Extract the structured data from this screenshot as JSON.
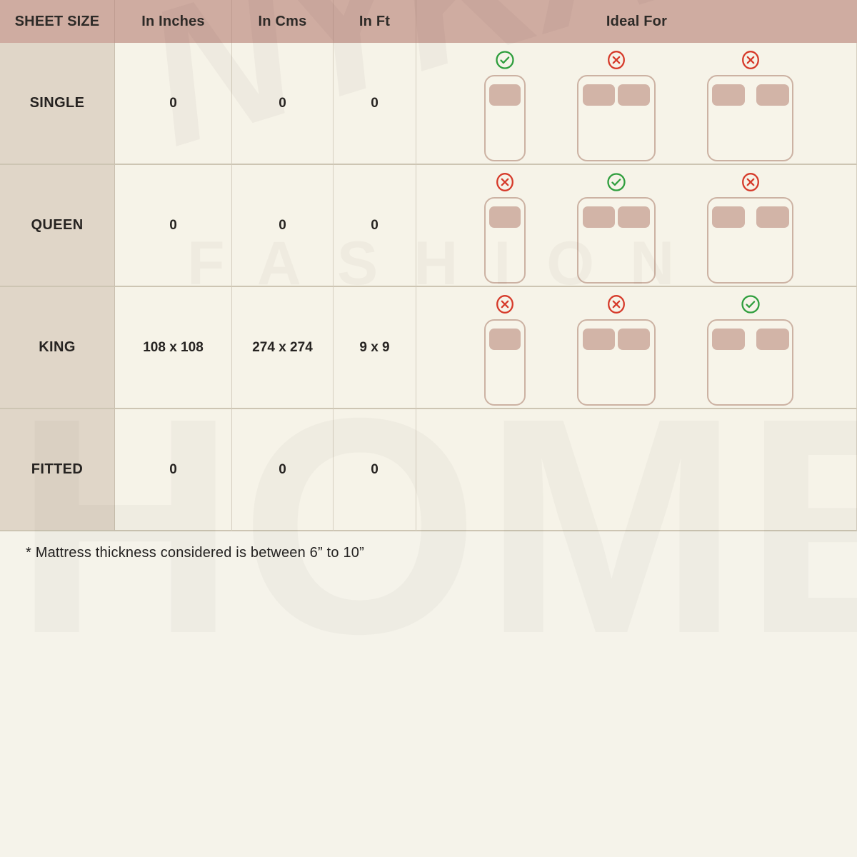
{
  "table": {
    "headers": [
      "SHEET SIZE",
      "In Inches",
      "In Cms",
      "In Ft",
      "Ideal For"
    ],
    "rows": [
      {
        "label": "SINGLE",
        "in_inches": "0",
        "in_cms": "0",
        "in_ft": "0",
        "ideal_for": [
          {
            "bed": "single",
            "status": "yes"
          },
          {
            "bed": "queen",
            "status": "no"
          },
          {
            "bed": "king",
            "status": "no"
          }
        ]
      },
      {
        "label": "QUEEN",
        "in_inches": "0",
        "in_cms": "0",
        "in_ft": "0",
        "ideal_for": [
          {
            "bed": "single",
            "status": "no"
          },
          {
            "bed": "queen",
            "status": "yes"
          },
          {
            "bed": "king",
            "status": "no"
          }
        ]
      },
      {
        "label": "KING",
        "in_inches": "108 x 108",
        "in_cms": "274 x 274",
        "in_ft": "9 x 9",
        "ideal_for": [
          {
            "bed": "single",
            "status": "no"
          },
          {
            "bed": "queen",
            "status": "no"
          },
          {
            "bed": "king",
            "status": "yes"
          }
        ]
      },
      {
        "label": "FITTED",
        "in_inches": "0",
        "in_cms": "0",
        "in_ft": "0",
        "ideal_for": []
      }
    ]
  },
  "footnote": "* Mattress thickness considered is between 6” to 10”",
  "watermark": {
    "script": "NYKAA",
    "line1": "FASHION",
    "line2": "HOME"
  },
  "icons": {
    "yes": "check-icon",
    "no": "cross-icon"
  },
  "colors": {
    "header_bg": "#cfaca1",
    "label_bg": "#e0d6c8",
    "cell_bg": "#f6f3e8",
    "page_bg": "#f5f3ea",
    "check_green": "#2f9e3d",
    "cross_red": "#d63a2a",
    "bed_outline": "#ccb2a3",
    "pillow": "#d2b4a7"
  }
}
